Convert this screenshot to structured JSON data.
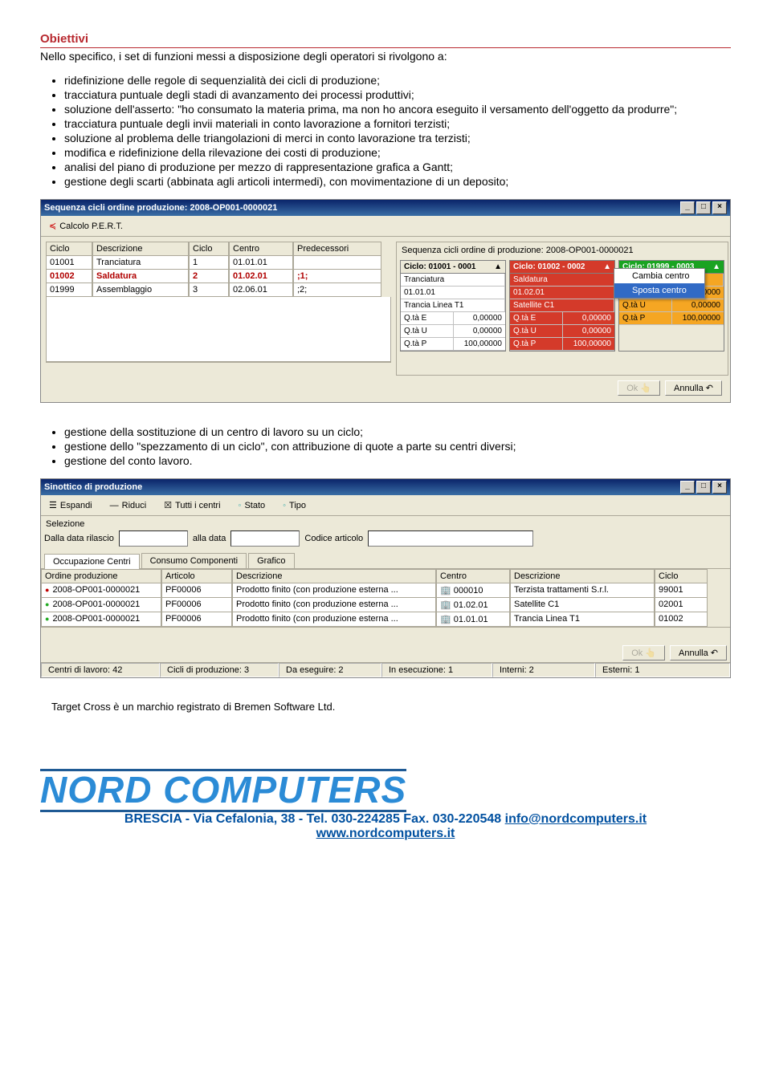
{
  "heading": "Obiettivi",
  "intro": "Nello specifico, i set di funzioni messi a disposizione degli operatori si rivolgono a:",
  "bullets1": [
    "ridefinizione delle regole di sequenzialità dei cicli di produzione;",
    "tracciatura puntuale degli stadi di avanzamento dei processi produttivi;",
    "soluzione dell'asserto: \"ho consumato la materia prima, ma non ho ancora eseguito il versamento dell'oggetto da produrre\";",
    "tracciatura puntuale degli invii materiali in conto lavorazione a fornitori terzisti;",
    "soluzione al problema delle triangolazioni di merci in conto lavorazione tra terzisti;",
    "modifica e ridefinizione della rilevazione dei costi di produzione;",
    "analisi del piano di produzione per mezzo di rappresentazione grafica a Gantt;",
    "gestione degli scarti (abbinata agli articoli intermedi), con movimentazione di un deposito;"
  ],
  "win1": {
    "title": "Sequenza cicli ordine produzione: 2008-OP001-0000021",
    "pert": "Calcolo P.E.R.T.",
    "cols": [
      "Ciclo",
      "Descrizione",
      "Ciclo",
      "Centro",
      "Predecessori"
    ],
    "rows": [
      {
        "c": [
          "01001",
          "Tranciatura",
          "1",
          "01.01.01",
          ""
        ],
        "sel": false
      },
      {
        "c": [
          "01002",
          "Saldatura",
          "2",
          "01.02.01",
          ";1;"
        ],
        "sel": true
      },
      {
        "c": [
          "01999",
          "Assemblaggio",
          "3",
          "02.06.01",
          ";2;"
        ],
        "sel": false
      }
    ],
    "right_title": "Sequenza cicli ordine di produzione: 2008-OP001-0000021",
    "cards": [
      {
        "head": "Ciclo: 01001 - 0001",
        "r1": "Tranciatura",
        "r2": "01.01.01",
        "r3": "Trancia Linea T1",
        "q": [
          [
            "Q.tà E",
            "0,00000"
          ],
          [
            "Q.tà U",
            "0,00000"
          ],
          [
            "Q.tà P",
            "100,00000"
          ]
        ],
        "cls": ""
      },
      {
        "head": "Ciclo: 01002 - 0002",
        "r1": "Saldatura",
        "r2": "01.02.01",
        "r3": "Satellite C1",
        "q": [
          [
            "Q.tà E",
            "0,00000"
          ],
          [
            "Q.tà U",
            "0,00000"
          ],
          [
            "Q.tà P",
            "100,00000"
          ]
        ],
        "cls": "red"
      },
      {
        "head": "Ciclo: 01999 - 0003",
        "r1": "Assemblaggio",
        "r2": "",
        "r3": "",
        "q": [
          [
            "Q.tà E",
            "0,00000"
          ],
          [
            "Q.tà U",
            "0,00000"
          ],
          [
            "Q.tà P",
            "100,00000"
          ]
        ],
        "cls": "green"
      }
    ],
    "menu": [
      "Cambia centro",
      "Sposta centro"
    ],
    "ok": "Ok",
    "cancel": "Annulla"
  },
  "bullets2": [
    "gestione della sostituzione di un centro di lavoro su un ciclo;",
    "gestione dello \"spezzamento di un ciclo\", con attribuzione di quote a parte su centri diversi;",
    "gestione del conto lavoro."
  ],
  "win2": {
    "title": "Sinottico di produzione",
    "toolbar": [
      "Espandi",
      "Riduci",
      "Tutti i centri",
      "Stato",
      "Tipo"
    ],
    "sel_label": "Selezione",
    "filters": {
      "l1": "Dalla data rilascio",
      "l2": "alla data",
      "l3": "Codice articolo"
    },
    "tabs": [
      "Occupazione Centri",
      "Consumo Componenti",
      "Grafico"
    ],
    "cols": [
      "Ordine produzione",
      "Articolo",
      "Descrizione",
      "Centro",
      "Descrizione",
      "Ciclo"
    ],
    "rows": [
      [
        "2008-OP001-0000021",
        "PF00006",
        "Prodotto finito (con produzione esterna ...",
        "000010",
        "Terzista trattamenti S.r.l.",
        "99001"
      ],
      [
        "2008-OP001-0000021",
        "PF00006",
        "Prodotto finito (con produzione esterna ...",
        "01.02.01",
        "Satellite C1",
        "02001"
      ],
      [
        "2008-OP001-0000021",
        "PF00006",
        "Prodotto finito (con produzione esterna ...",
        "01.01.01",
        "Trancia Linea T1",
        "01002"
      ]
    ],
    "ok": "Ok",
    "cancel": "Annulla",
    "status": [
      "Centri di lavoro: 42",
      "Cicli di produzione: 3",
      "Da eseguire: 2",
      "In esecuzione: 1",
      "Interni: 2",
      "Esterni: 1"
    ]
  },
  "trademark": "Target Cross è un marchio registrato di Bremen Software Ltd.",
  "logo": "NORD COMPUTERS",
  "address_pre": "BRESCIA - Via Cefalonia, 38 - Tel. 030-224285 Fax. 030-220548 ",
  "email": "info@nordcomputers.it",
  "website": "www.nordcomputers.it"
}
